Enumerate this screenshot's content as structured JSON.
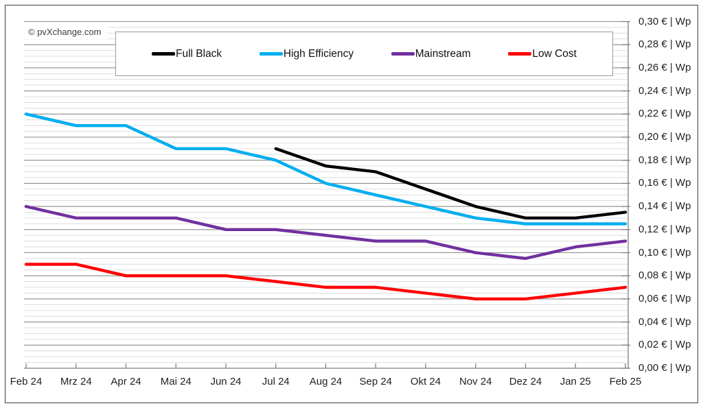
{
  "watermark": "© pvXchange.com",
  "colors": {
    "major_grid": "#8a8a8a",
    "minor_grid": "#dcdcdc",
    "axis": "#7f7f7f",
    "frame": "#3f3f3f",
    "full_black": "#000000",
    "high_efficiency": "#00AEEF",
    "mainstream": "#7030A0",
    "low_cost": "#FF0000"
  },
  "chart_data": {
    "type": "line",
    "title": "",
    "categories": [
      "Feb 24",
      "Mrz 24",
      "Apr 24",
      "Mai 24",
      "Jun 24",
      "Jul 24",
      "Aug 24",
      "Sep 24",
      "Okt 24",
      "Nov 24",
      "Dez 24",
      "Jan 25",
      "Feb 25"
    ],
    "series": [
      {
        "name": "Full Black",
        "color": "#000000",
        "values": [
          null,
          null,
          null,
          null,
          null,
          0.19,
          0.175,
          0.17,
          0.155,
          0.14,
          0.13,
          0.13,
          0.135
        ]
      },
      {
        "name": "High Efficiency",
        "color": "#00AEEF",
        "values": [
          0.22,
          0.21,
          0.21,
          0.19,
          0.19,
          0.18,
          0.16,
          0.15,
          0.14,
          0.13,
          0.125,
          0.125,
          0.125
        ]
      },
      {
        "name": "Mainstream",
        "color": "#7030A0",
        "values": [
          0.14,
          0.13,
          0.13,
          0.13,
          0.12,
          0.12,
          0.115,
          0.11,
          0.11,
          0.1,
          0.095,
          0.105,
          0.11
        ]
      },
      {
        "name": "Low Cost",
        "color": "#FF0000",
        "values": [
          0.09,
          0.09,
          0.08,
          0.08,
          0.08,
          0.075,
          0.07,
          0.07,
          0.065,
          0.06,
          0.06,
          0.065,
          0.07
        ]
      }
    ],
    "y_axis": {
      "side": "right",
      "unit": "€ | Wp",
      "min": 0.0,
      "max": 0.3,
      "major_step": 0.02,
      "minor_step": 0.005,
      "tick_labels": [
        "0,30 € | Wp",
        "0,28 € | Wp",
        "0,26 € | Wp",
        "0,24 € | Wp",
        "0,22 € | Wp",
        "0,20 € | Wp",
        "0,18 € | Wp",
        "0,16 € | Wp",
        "0,14 € | Wp",
        "0,12 € | Wp",
        "0,10 € | Wp",
        "0,08 € | Wp",
        "0,06 € | Wp",
        "0,04 € | Wp",
        "0,02 € | Wp",
        "0,00 € | Wp"
      ]
    },
    "grid": "horizontal major+minor",
    "legend_position": "top"
  }
}
